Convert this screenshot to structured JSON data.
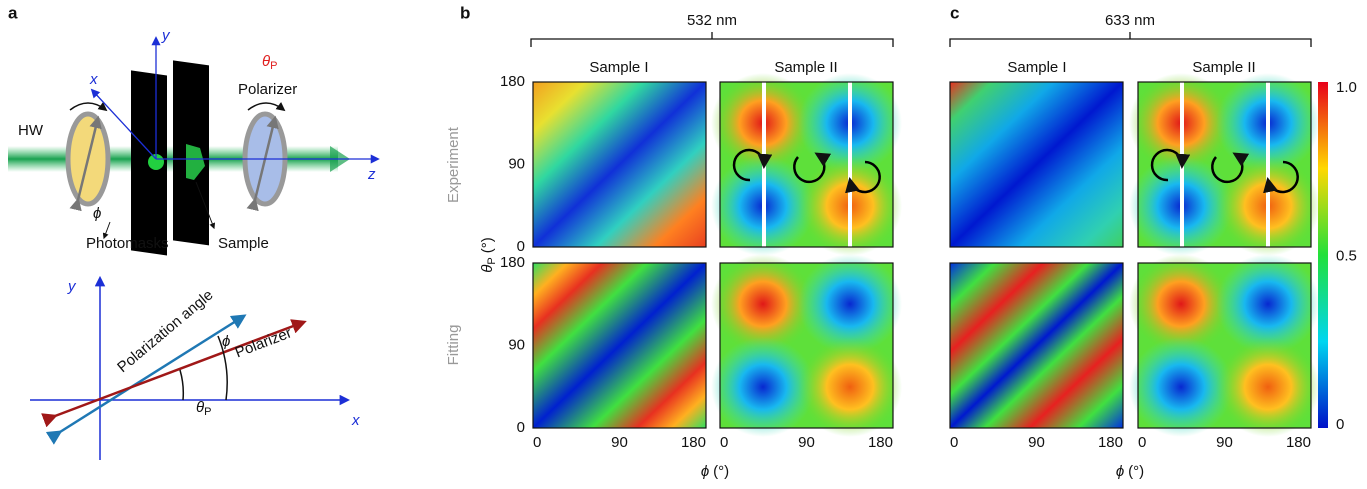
{
  "panel_a": {
    "label": "a",
    "schematic": {
      "hw": "HW",
      "phi": "ϕ",
      "photomasks": "Photomasks",
      "sample": "Sample",
      "theta": "θ",
      "theta_sub": "P",
      "polarizer": "Polarizer",
      "x": "x",
      "y": "y",
      "z": "z"
    },
    "angle_diagram": {
      "x": "x",
      "y": "y",
      "polarization_angle": "Polarization angle",
      "polarizer": "Polarizer",
      "phi": "ϕ",
      "theta": "θ",
      "theta_sub": "P"
    }
  },
  "panel_b": {
    "label": "b",
    "wavelength": "532 nm",
    "columns": [
      "Sample I",
      "Sample II"
    ]
  },
  "panel_c": {
    "label": "c",
    "wavelength": "633 nm",
    "columns": [
      "Sample I",
      "Sample II"
    ]
  },
  "rows": [
    "Experiment",
    "Fitting"
  ],
  "y_axis": {
    "symbol": "θ",
    "sub": "P",
    "unit": "(°)",
    "ticks": [
      "180",
      "90",
      "0"
    ]
  },
  "x_axis": {
    "symbol": "ϕ",
    "unit": "(°)",
    "ticks": [
      "0",
      "90",
      "180"
    ]
  },
  "colorbar": {
    "ticks": [
      "1.0",
      "0.5",
      "0"
    ]
  }
}
